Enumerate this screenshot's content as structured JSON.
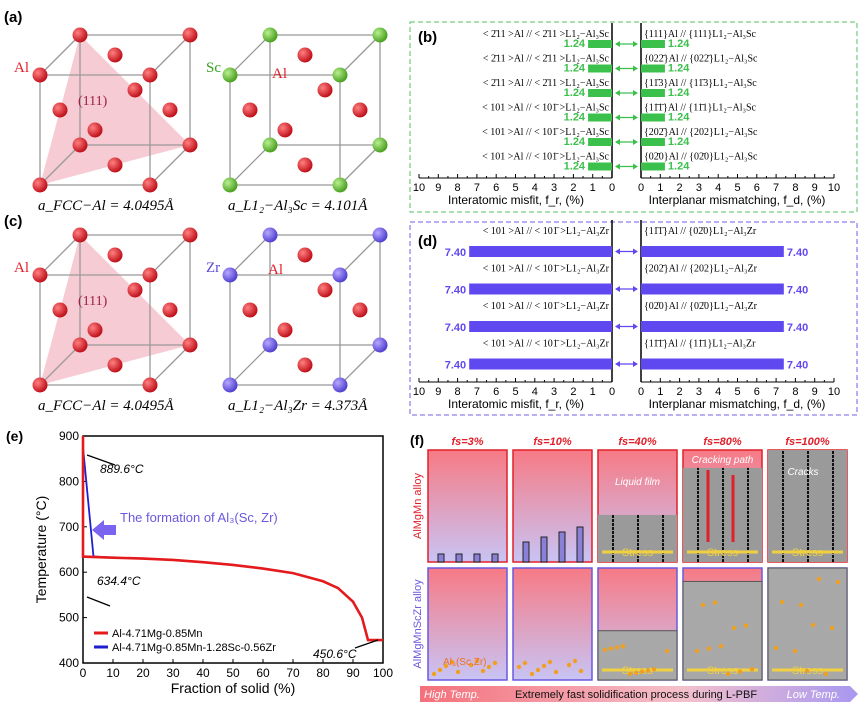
{
  "panel_a": {
    "label": "(a)",
    "al": "Al",
    "sc": "Sc",
    "al2": "Al",
    "plane": "(111)",
    "lattice_left": "a_FCC−Al = 4.0495Å",
    "lattice_right": "a_L1₂−Al₃Sc = 4.101Å"
  },
  "panel_c": {
    "label": "(c)",
    "al": "Al",
    "zr": "Zr",
    "al2": "Al",
    "plane": "(111)",
    "lattice_left": "a_FCC−Al = 4.0495Å",
    "lattice_right": "a_L1₂−Al₃Zr = 4.373Å"
  },
  "colors": {
    "al_atom": "#e0202a",
    "sc_atom": "#6cc83a",
    "zr_atom": "#7a64e8",
    "sc_bar": "#3cc04c",
    "zr_bar": "#6048f0",
    "red_line": "#e41a1c",
    "blue_line": "#1f1fd0"
  },
  "panel_b": {
    "label": "(b)",
    "xlabel_left": "Interatomic misfit, f_r, (%)",
    "xlabel_right": "Interplanar mismatching, f_d, (%)",
    "ticks": [
      "10",
      "9",
      "8",
      "7",
      "6",
      "5",
      "4",
      "3",
      "2",
      "1",
      "0"
    ],
    "ticks_right": [
      "0",
      "1",
      "2",
      "3",
      "4",
      "5",
      "6",
      "7",
      "8",
      "9",
      "10"
    ],
    "rows": [
      {
        "dir": "< 2̄11 >Al // < 2̄11 >L1₂−Al₃Sc",
        "plane": "{111}Al // {111}L1₂−Al₃Sc",
        "fr": 1.24,
        "fd": 1.24,
        "fr_label": "1.24",
        "fd_label": "1.24"
      },
      {
        "dir": "< 2̄11 >Al // < 2̄11 >L1₂−Al₃Sc",
        "plane": "{022̄}Al // {022̄}L1₂−Al₃Sc",
        "fr": 1.24,
        "fd": 1.24,
        "fr_label": "1.24",
        "fd_label": "1.24"
      },
      {
        "dir": "< 2̄11 >Al // < 2̄11 >L1₂−Al₃Sc",
        "plane": "{11̄3}Al // {11̄3}L1₂−Al₃Sc",
        "fr": 1.24,
        "fd": 1.24,
        "fr_label": "1.24",
        "fd_label": "1.24"
      },
      {
        "dir": "< 101 >Al // < 101̄ >L1₂−Al₃Sc",
        "plane": "{11̄1̄}Al // {11̄1}L1₂−Al₃Sc",
        "fr": 1.24,
        "fd": 1.24,
        "fr_label": "1.24",
        "fd_label": "1.24"
      },
      {
        "dir": "< 101 >Al // < 101̄ >L1₂−Al₃Sc",
        "plane": "{202̄}Al // {202}L1₂−Al₃Sc",
        "fr": 1.24,
        "fd": 1.24,
        "fr_label": "1.24",
        "fd_label": "1.24"
      },
      {
        "dir": "< 101 >Al // < 101̄ >L1₂−Al₃Sc",
        "plane": "{02̄0}Al // {02̄0}L1₂−Al₃Sc",
        "fr": 1.24,
        "fd": 1.24,
        "fr_label": "1.24",
        "fd_label": "1.24"
      }
    ]
  },
  "panel_d": {
    "label": "(d)",
    "xlabel_left": "Interatomic misfit, f_r, (%)",
    "xlabel_right": "Interplanar mismatching, f_d, (%)",
    "ticks": [
      "10",
      "9",
      "8",
      "7",
      "6",
      "5",
      "4",
      "3",
      "2",
      "1",
      "0"
    ],
    "ticks_right": [
      "0",
      "1",
      "2",
      "3",
      "4",
      "5",
      "6",
      "7",
      "8",
      "9",
      "10"
    ],
    "rows": [
      {
        "dir": "< 101 >Al // < 101̄ >L1₂−Al₃Zr",
        "plane": "{11̄1̄}Al // {02̄0}L1₂−Al₃Zr",
        "fr": 7.4,
        "fd": 7.4,
        "fr_label": "7.40",
        "fd_label": "7.40"
      },
      {
        "dir": "< 101 >Al // < 101̄ >L1₂−Al₃Zr",
        "plane": "{202̄}Al // {202}L1₂−Al₃Zr",
        "fr": 7.4,
        "fd": 7.4,
        "fr_label": "7.40",
        "fd_label": "7.40"
      },
      {
        "dir": "< 101 >Al // < 101̄ >L1₂−Al₃Zr",
        "plane": "{02̄0}Al // {02̄0}L1₂−Al₃Zr",
        "fr": 7.4,
        "fd": 7.4,
        "fr_label": "7.40",
        "fd_label": "7.40"
      },
      {
        "dir": "< 101 >Al // < 101̄ >L1₂−Al₃Zr",
        "plane": "{11̄1̄}Al // {11̄1}L1₂−Al₃Zr",
        "fr": 7.4,
        "fd": 7.4,
        "fr_label": "7.40",
        "fd_label": "7.40"
      }
    ]
  },
  "chart_data": {
    "type": "line",
    "panel_label": "(e)",
    "xlabel": "Fraction of solid (%)",
    "ylabel": "Temperature (°C)",
    "xlim": [
      0,
      100
    ],
    "ylim": [
      400,
      900
    ],
    "xticks": [
      "0",
      "10",
      "20",
      "30",
      "40",
      "50",
      "60",
      "70",
      "80",
      "90",
      "100"
    ],
    "yticks": [
      "400",
      "500",
      "600",
      "700",
      "800",
      "900"
    ],
    "grid": false,
    "legend_position": "bottom-left",
    "series": [
      {
        "name": "Al-4.71Mg-0.85Mn",
        "color": "#e41a1c",
        "x": [
          0,
          0,
          10,
          20,
          30,
          40,
          50,
          60,
          70,
          80,
          85,
          90,
          93,
          95,
          100
        ],
        "y": [
          900,
          634.4,
          632,
          630,
          627,
          622,
          616,
          608,
          598,
          580,
          565,
          535,
          500,
          450.6,
          450.6
        ]
      },
      {
        "name": "Al-4.71Mg-0.85Mn-1.28Sc-0.56Zr",
        "color": "#1f1fd0",
        "x": [
          0,
          3.5,
          10,
          20,
          30,
          40,
          50,
          60,
          70,
          80,
          85,
          90,
          93,
          95,
          100
        ],
        "y": [
          875,
          634.4,
          632,
          630,
          627,
          622,
          616,
          608,
          598,
          580,
          565,
          535,
          500,
          450.6,
          450.6
        ]
      }
    ],
    "annotations": [
      "889.6°C",
      "634.4°C",
      "450.6°C",
      "The formation of Al₃(Sc, Zr)"
    ]
  },
  "panel_f": {
    "label": "(f)",
    "columns": [
      "fs=3%",
      "fs=10%",
      "fs=40%",
      "fs=80%",
      "fs=100%"
    ],
    "row_top": "AlMgMn alloy",
    "row_bottom": "AlMgMnScZr alloy",
    "liquid_film": "Liquid film",
    "cracking_path": "Cracking path",
    "cracks": "Cracks",
    "stress": "Stress",
    "particle": "Al₃(Sc,Zr)",
    "arrow_left": "High Temp.",
    "arrow_mid": "Extremely fast solidification process during L-PBF",
    "arrow_right": "Low Temp."
  }
}
